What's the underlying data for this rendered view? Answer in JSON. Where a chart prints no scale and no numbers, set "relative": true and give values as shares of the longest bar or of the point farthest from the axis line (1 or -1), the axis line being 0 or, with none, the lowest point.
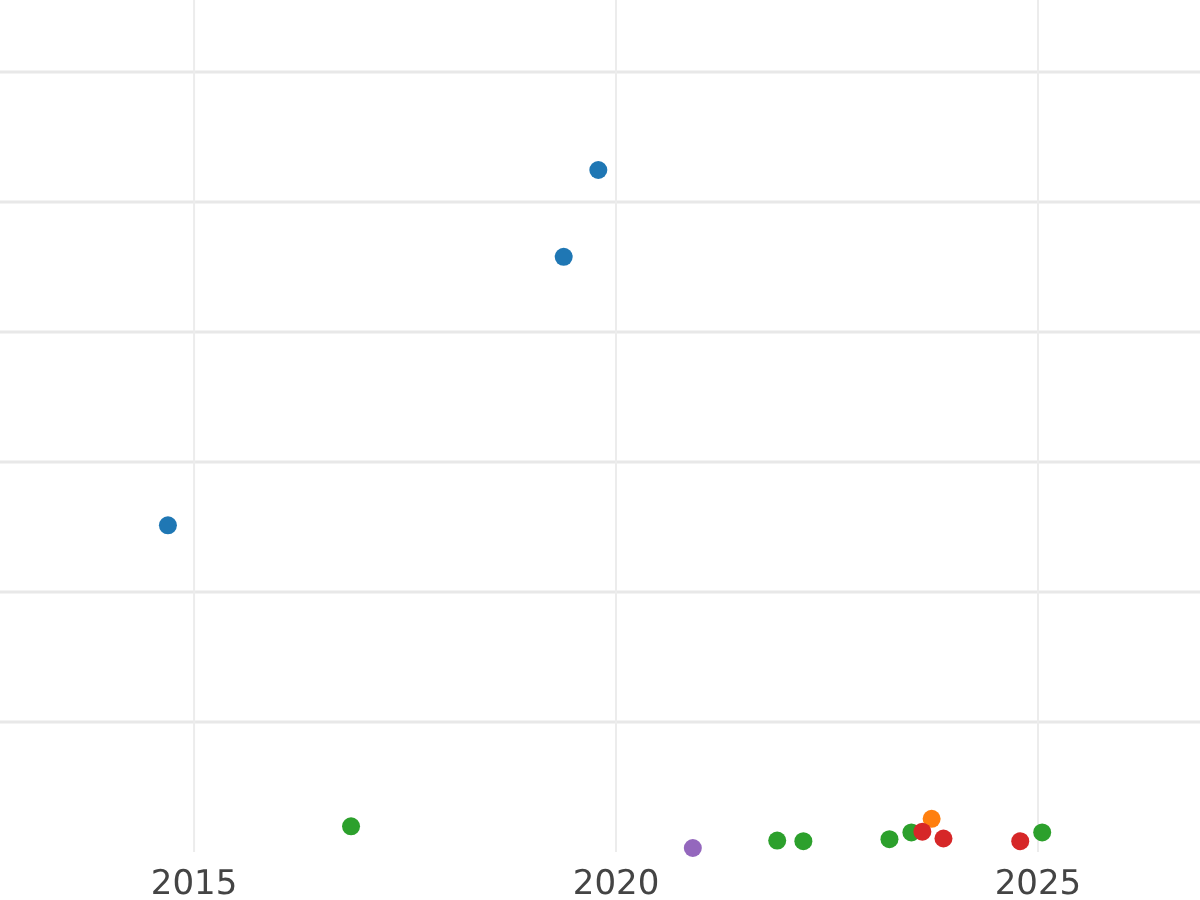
{
  "chart_data": {
    "type": "scatter",
    "relative": true,
    "xlim": [
      2012.7,
      2026.92
    ],
    "xticks": [
      2015,
      2020,
      2025
    ],
    "grid": true,
    "marker": "circle",
    "series": [
      {
        "color": "#1f77b4",
        "x": [
          2014.69,
          2019.38,
          2019.79
        ],
        "values": [
          0.476,
          0.872,
          1
        ]
      },
      {
        "color": "#ff7f0e",
        "x": [
          2023.74
        ],
        "values": [
          0.043
        ]
      },
      {
        "color": "#2ca02c",
        "x": [
          2016.86,
          2021.91,
          2022.22,
          2023.24,
          2023.5,
          2025.05
        ],
        "values": [
          0.032,
          0.011,
          0.01,
          0.013,
          0.023,
          0.023
        ]
      },
      {
        "color": "#d62728",
        "x": [
          2023.63,
          2023.88,
          2024.79
        ],
        "values": [
          0.024,
          0.014,
          0.01
        ]
      },
      {
        "color": "#9467bd",
        "x": [
          2020.91
        ],
        "values": [
          0
        ]
      }
    ]
  }
}
